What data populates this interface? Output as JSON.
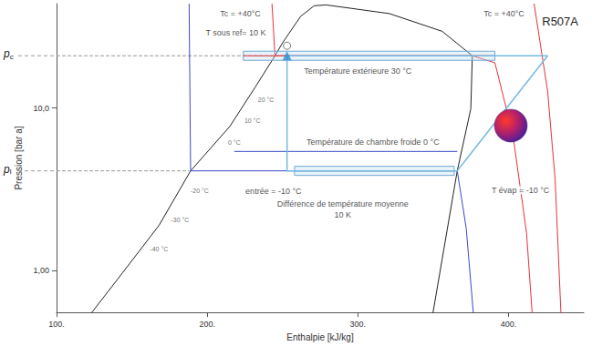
{
  "chart_data": {
    "type": "line",
    "title": "R507A",
    "x_label": "Enthalpie [kJ/kg]",
    "y_label": "Pression [bar a]",
    "log": "y",
    "grid": false,
    "xlim": [
      100,
      450
    ],
    "xticks": [
      {
        "value": 100,
        "label": "100."
      },
      {
        "value": 200,
        "label": "200."
      },
      {
        "value": 300,
        "label": "300."
      },
      {
        "value": 400,
        "label": "400."
      }
    ],
    "ylim": [
      0.55,
      44
    ],
    "yticks": [
      {
        "value": 1,
        "label": "1,00"
      },
      {
        "value": 10,
        "label": "10,0"
      }
    ],
    "saturation_curve": {
      "color": "#222222",
      "x": [
        120,
        144,
        168,
        189,
        215,
        232,
        245,
        250,
        262,
        271,
        279,
        321,
        356,
        376,
        375,
        366,
        357,
        349
      ],
      "values": [
        0.5,
        0.97,
        1.89,
        4.1,
        7.7,
        13.5,
        21,
        25.2,
        36.7,
        42.7,
        43.2,
        38.2,
        29.7,
        21,
        9.9,
        4.1,
        1.33,
        0.49
      ]
    },
    "isotherms": [
      {
        "color": "#3949c8",
        "x": [
          188,
          189,
          366,
          372,
          377
        ],
        "values": [
          44,
          4.1,
          4.1,
          1.8,
          0.5
        ]
      },
      {
        "color": "#e8303c",
        "x": [
          243,
          245,
          376,
          391,
          403,
          412,
          416
        ],
        "values": [
          44,
          21,
          21,
          19,
          6.8,
          1.7,
          0.5
        ]
      },
      {
        "color": "#e8303c",
        "x": [
          417,
          426,
          431,
          435
        ],
        "values": [
          44,
          12.7,
          3.6,
          0.5
        ]
      }
    ],
    "cycle": {
      "color": "#74b9e0",
      "x": [
        253,
        366,
        426,
        253,
        253
      ],
      "values": [
        4.1,
        4.1,
        21,
        21,
        4.1
      ]
    },
    "room_line": {
      "color": "#3949c8",
      "x": [
        218,
        366
      ],
      "values": [
        5.4,
        5.4
      ]
    },
    "exchangers": [
      {
        "color": "#e8303c",
        "x": [
          224,
          391
        ],
        "value": 21
      },
      {
        "color": "#3949c8",
        "x": [
          258,
          364
        ],
        "value": 4.1
      }
    ],
    "pressure_levels": [
      {
        "label": "pc",
        "value": 21,
        "x": [
          100,
          253
        ],
        "line_style": "dashed"
      },
      {
        "label": "pl",
        "value": 4.1,
        "x": [
          100,
          188
        ],
        "line_style": "dashed"
      }
    ],
    "annotations": [
      {
        "text": "T sous ref= 10 K",
        "x": 219,
        "y": 29
      },
      {
        "text": "Tc = +40°C",
        "x": 222,
        "y": 38
      },
      {
        "text": "Tc = +40°C",
        "x": 397,
        "y": 38
      },
      {
        "text": "Température extérieure 30 °C",
        "x": 300,
        "y": 16.9
      },
      {
        "text": "Température de chambre froide 0 °C",
        "x": 310,
        "y": 6.14
      },
      {
        "text": "entrée = -10 °C",
        "x": 244,
        "y": 3.08
      },
      {
        "text": "T évap = -10 °C",
        "x": 408,
        "y": 3.12
      },
      {
        "text": "Différence de température moyenne",
        "x": 290,
        "y": 2.56
      },
      {
        "text": "10 K",
        "x": 290,
        "y": 2.2
      }
    ],
    "temperature_labels": [
      {
        "text": "-40 °C",
        "x": 168,
        "y": 1.35
      },
      {
        "text": "-30 °C",
        "x": 182,
        "y": 2.05
      },
      {
        "text": "-20 °C",
        "x": 195,
        "y": 3.1
      },
      {
        "text": "0 °C",
        "x": 218,
        "y": 6.1
      },
      {
        "text": "10 °C",
        "x": 230,
        "y": 8.4
      },
      {
        "text": "20 °C",
        "x": 239,
        "y": 11.3
      }
    ]
  }
}
